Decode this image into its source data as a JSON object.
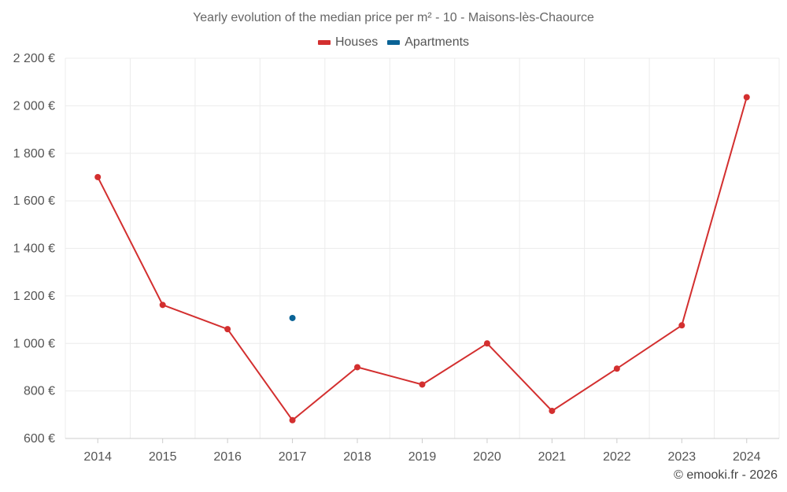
{
  "chart_data": {
    "type": "line",
    "title": "Yearly evolution of the median price per m² - 10 - Maisons-lès-Chaource",
    "x": [
      "2014",
      "2015",
      "2016",
      "2017",
      "2018",
      "2019",
      "2020",
      "2021",
      "2022",
      "2023",
      "2024"
    ],
    "series": [
      {
        "name": "Houses",
        "color": "#d32f2f",
        "values": [
          1700,
          1162,
          1060,
          677,
          900,
          827,
          1000,
          716,
          894,
          1076,
          2036
        ]
      },
      {
        "name": "Apartments",
        "color": "#0a6396",
        "values": [
          null,
          null,
          null,
          1107,
          null,
          null,
          null,
          null,
          null,
          null,
          null
        ]
      }
    ],
    "y_ticks": [
      600,
      800,
      1000,
      1200,
      1400,
      1600,
      1800,
      2000,
      2200
    ],
    "y_tick_labels": [
      "600 €",
      "800 €",
      "1 000 €",
      "1 200 €",
      "1 400 €",
      "1 600 €",
      "1 800 €",
      "2 000 €",
      "2 200 €"
    ],
    "ylim": [
      600,
      2200
    ],
    "grid": true,
    "legend_position": "top-center",
    "xlabel": "",
    "ylabel": ""
  },
  "credit": "© emooki.fr - 2026"
}
